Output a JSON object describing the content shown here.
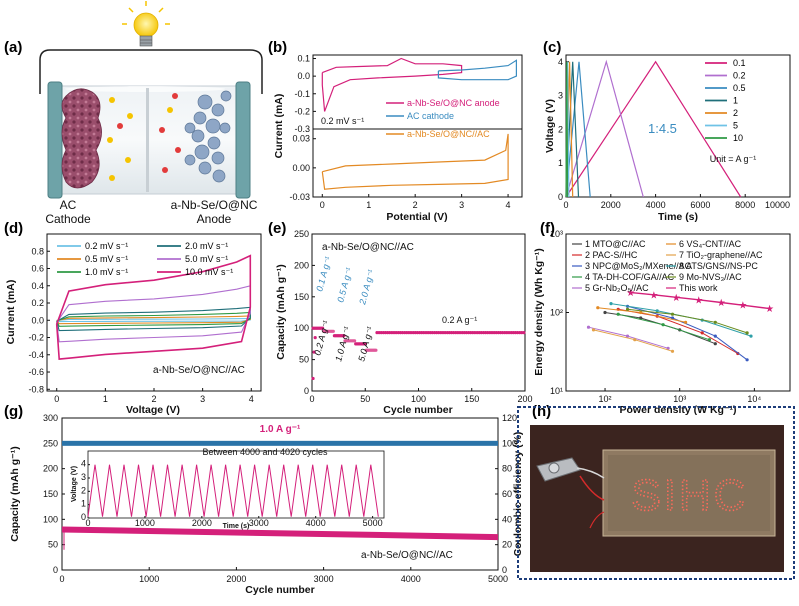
{
  "panel_letters": {
    "a": "(a)",
    "b": "(b)",
    "c": "(c)",
    "d": "(d)",
    "e": "(e)",
    "f": "(f)",
    "g": "(g)",
    "h": "(h)"
  },
  "panel_a": {
    "cathode_label_1": "AC",
    "cathode_label_2": "Cathode",
    "anode_label_1": "a-Nb-Se/O@NC",
    "anode_label_2": "Anode"
  },
  "panel_h": {
    "led_text": "SIHC"
  },
  "colors": {
    "magenta": "#d4207a",
    "blue": "#3a8cc0",
    "orange": "#e38a24",
    "green": "#2f9a45",
    "teal": "#1f6f7a",
    "purple": "#b06fcf",
    "lightblue": "#6fc3e6"
  },
  "chart_data": [
    {
      "id": "b",
      "type": "line",
      "subtype": "cyclic-voltammetry",
      "xlabel": "Potential (V)",
      "ylabel": "Current (mA)",
      "xlim": [
        -0.2,
        4.3
      ],
      "xticks": [
        0,
        1,
        2,
        3,
        4
      ],
      "top": {
        "ylim": [
          -0.3,
          0.12
        ],
        "yticks": [
          0.1,
          0.0,
          -0.1,
          -0.2,
          -0.3
        ],
        "series": [
          {
            "name": "a-Nb-Se/O@NC anode",
            "range": [
              0,
              3.0
            ]
          },
          {
            "name": "AC cathode",
            "range": [
              2.5,
              4.2
            ]
          }
        ]
      },
      "bottom": {
        "ylim": [
          -0.03,
          0.04
        ],
        "yticks": [
          0.03,
          0.0,
          -0.03
        ],
        "series": [
          {
            "name": "a-Nb-Se/O@NC//AC",
            "range": [
              0,
              4.0
            ]
          }
        ]
      },
      "scan_rate_label": "0.2 mV s⁻¹"
    },
    {
      "id": "c",
      "type": "line",
      "subtype": "galvanostatic-charge-discharge",
      "xlabel": "Time (s)",
      "ylabel": "Voltage (V)",
      "xlim": [
        0,
        10000
      ],
      "ylim": [
        0,
        4.2
      ],
      "xticks": [
        0,
        2000,
        4000,
        6000,
        8000,
        10000
      ],
      "yticks": [
        0,
        1,
        2,
        3,
        4
      ],
      "legend_unit": "Unit = A g⁻¹",
      "annotation": "1:4.5",
      "series": [
        {
          "name": "0.1",
          "charge_time": 4000,
          "end_time": 7800
        },
        {
          "name": "0.2",
          "charge_time": 1800,
          "end_time": 3450
        },
        {
          "name": "0.5",
          "charge_time": 580,
          "end_time": 1080
        },
        {
          "name": "1",
          "charge_time": 300,
          "end_time": 560
        },
        {
          "name": "2",
          "charge_time": 160,
          "end_time": 300
        },
        {
          "name": "5",
          "charge_time": 70,
          "end_time": 130
        },
        {
          "name": "10",
          "charge_time": 35,
          "end_time": 65
        }
      ]
    },
    {
      "id": "d",
      "type": "line",
      "subtype": "cyclic-voltammetry",
      "xlabel": "Voltage (V)",
      "ylabel": "Current (mA)",
      "xlim": [
        -0.2,
        4.2
      ],
      "ylim": [
        -0.82,
        1.0
      ],
      "xticks": [
        0,
        1,
        2,
        3,
        4
      ],
      "yticks": [
        0.8,
        0.6,
        0.4,
        0.2,
        0.0,
        -0.2,
        -0.4,
        -0.6,
        -0.8
      ],
      "annotation": "a-Nb-Se/O@NC//AC",
      "series": [
        {
          "name": "0.2 mV s⁻¹",
          "top": 0.02,
          "bottom": -0.015
        },
        {
          "name": "0.5 mV s⁻¹",
          "top": 0.05,
          "bottom": -0.04
        },
        {
          "name": "1.0 mV s⁻¹",
          "top": 0.09,
          "bottom": -0.07
        },
        {
          "name": "2.0 mV s⁻¹",
          "top": 0.15,
          "bottom": -0.12
        },
        {
          "name": "5.0 mV s⁻¹",
          "top": 0.4,
          "bottom": -0.25
        },
        {
          "name": "10.0 mV s⁻¹",
          "top": 0.75,
          "bottom": -0.45
        }
      ]
    },
    {
      "id": "e",
      "type": "scatter",
      "subtype": "rate-capability",
      "xlabel": "Cycle number",
      "ylabel": "Capacity (mAh g⁻¹)",
      "xlim": [
        0,
        200
      ],
      "ylim": [
        0,
        250
      ],
      "xticks": [
        0,
        50,
        100,
        150,
        200
      ],
      "yticks": [
        0,
        50,
        100,
        150,
        200,
        250
      ],
      "annotation": "a-Nb-Se/O@NC//AC",
      "segments": [
        {
          "label": "0.1 A g⁻¹",
          "cycles": [
            1,
            10
          ],
          "capacity": 100
        },
        {
          "label": "0.2 A g⁻¹",
          "cycles": [
            11,
            20
          ],
          "capacity": 95
        },
        {
          "label": "0.5 A g⁻¹",
          "cycles": [
            21,
            30
          ],
          "capacity": 88
        },
        {
          "label": "1.0 A g⁻¹",
          "cycles": [
            31,
            40
          ],
          "capacity": 80
        },
        {
          "label": "2.0 A g⁻¹",
          "cycles": [
            41,
            50
          ],
          "capacity": 75
        },
        {
          "label": "5.0 A g⁻¹",
          "cycles": [
            51,
            60
          ],
          "capacity": 65
        },
        {
          "label": "0.2 A g⁻¹",
          "cycles": [
            61,
            200
          ],
          "capacity": 93
        }
      ]
    },
    {
      "id": "f",
      "type": "line",
      "subtype": "ragone-log-log",
      "xlabel": "Power density (W Kg⁻¹)",
      "ylabel": "Energy density (Wh Kg⁻¹)",
      "xlim": [
        30,
        30000
      ],
      "ylim": [
        10,
        1000
      ],
      "xticks": [
        100,
        1000,
        10000
      ],
      "yticks": [
        10,
        100,
        1000
      ],
      "xtick_labels": [
        "10²",
        "10³",
        "10⁴"
      ],
      "ytick_labels": [
        "10¹",
        "10²",
        "10³"
      ],
      "series": [
        {
          "name": "1 MTO@C//AC",
          "points": [
            [
              100,
              100
            ],
            [
              300,
              85
            ],
            [
              1000,
              60
            ],
            [
              3000,
              40
            ]
          ]
        },
        {
          "name": "2 PAC-S//HC",
          "points": [
            [
              150,
              110
            ],
            [
              500,
              90
            ],
            [
              2000,
              55
            ],
            [
              6000,
              30
            ]
          ]
        },
        {
          "name": "3 NPC@MoS₂/MXene//AC",
          "points": [
            [
              200,
              120
            ],
            [
              800,
              85
            ],
            [
              3000,
              50
            ],
            [
              8000,
              25
            ]
          ]
        },
        {
          "name": "4 TA-DH-COF/GA//AC",
          "points": [
            [
              150,
              95
            ],
            [
              600,
              70
            ],
            [
              2500,
              45
            ]
          ]
        },
        {
          "name": "5 Gr-Nb₂O₅//AC",
          "points": [
            [
              60,
              65
            ],
            [
              200,
              50
            ],
            [
              700,
              35
            ]
          ]
        },
        {
          "name": "6 VS₄-CNT//AC",
          "points": [
            [
              80,
              115
            ],
            [
              300,
              100
            ],
            [
              1200,
              75
            ]
          ]
        },
        {
          "name": "7 TiO₂-graphene//AC",
          "points": [
            [
              70,
              60
            ],
            [
              250,
              45
            ],
            [
              800,
              32
            ]
          ]
        },
        {
          "name": "8 ATS/GNS//NS-PC",
          "points": [
            [
              120,
              130
            ],
            [
              500,
              105
            ],
            [
              2000,
              80
            ],
            [
              9000,
              50
            ]
          ]
        },
        {
          "name": "9 Mo-NVS₃//AC",
          "points": [
            [
              200,
              110
            ],
            [
              800,
              95
            ],
            [
              3000,
              75
            ],
            [
              8000,
              55
            ]
          ]
        },
        {
          "name": "This work",
          "points": [
            [
              220,
              180
            ],
            [
              450,
              168
            ],
            [
              900,
              156
            ],
            [
              1800,
              145
            ],
            [
              3600,
              134
            ],
            [
              7000,
              124
            ],
            [
              16000,
              112
            ]
          ]
        }
      ]
    },
    {
      "id": "g",
      "type": "scatter",
      "subtype": "long-term-cycling",
      "xlabel": "Cycle number",
      "ylabel": "Capacity (mAh g⁻¹)",
      "y2label": "Coulombic efficiency (%)",
      "xlim": [
        0,
        5000
      ],
      "ylim": [
        0,
        300
      ],
      "y2lim": [
        0,
        120
      ],
      "xticks": [
        0,
        1000,
        2000,
        3000,
        4000,
        5000
      ],
      "yticks": [
        0,
        50,
        100,
        150,
        200,
        250,
        300
      ],
      "y2ticks": [
        0,
        20,
        40,
        60,
        80,
        100,
        120
      ],
      "current_label": "1.0 A g⁻¹",
      "annotation": "a-Nb-Se/O@NC//AC",
      "capacity": {
        "start": 80,
        "end": 65
      },
      "coulombic_efficiency": 100,
      "inset": {
        "title": "Between 4000 and 4020 cycles",
        "xlabel": "Time (s)",
        "ylabel": "Voltage (V)",
        "xlim": [
          0,
          5200
        ],
        "ylim": [
          0,
          4.5
        ],
        "xticks": [
          0,
          1000,
          2000,
          3000,
          4000,
          5000
        ],
        "yticks": [
          0,
          1,
          2,
          3,
          4
        ],
        "cycles": 20
      }
    }
  ]
}
